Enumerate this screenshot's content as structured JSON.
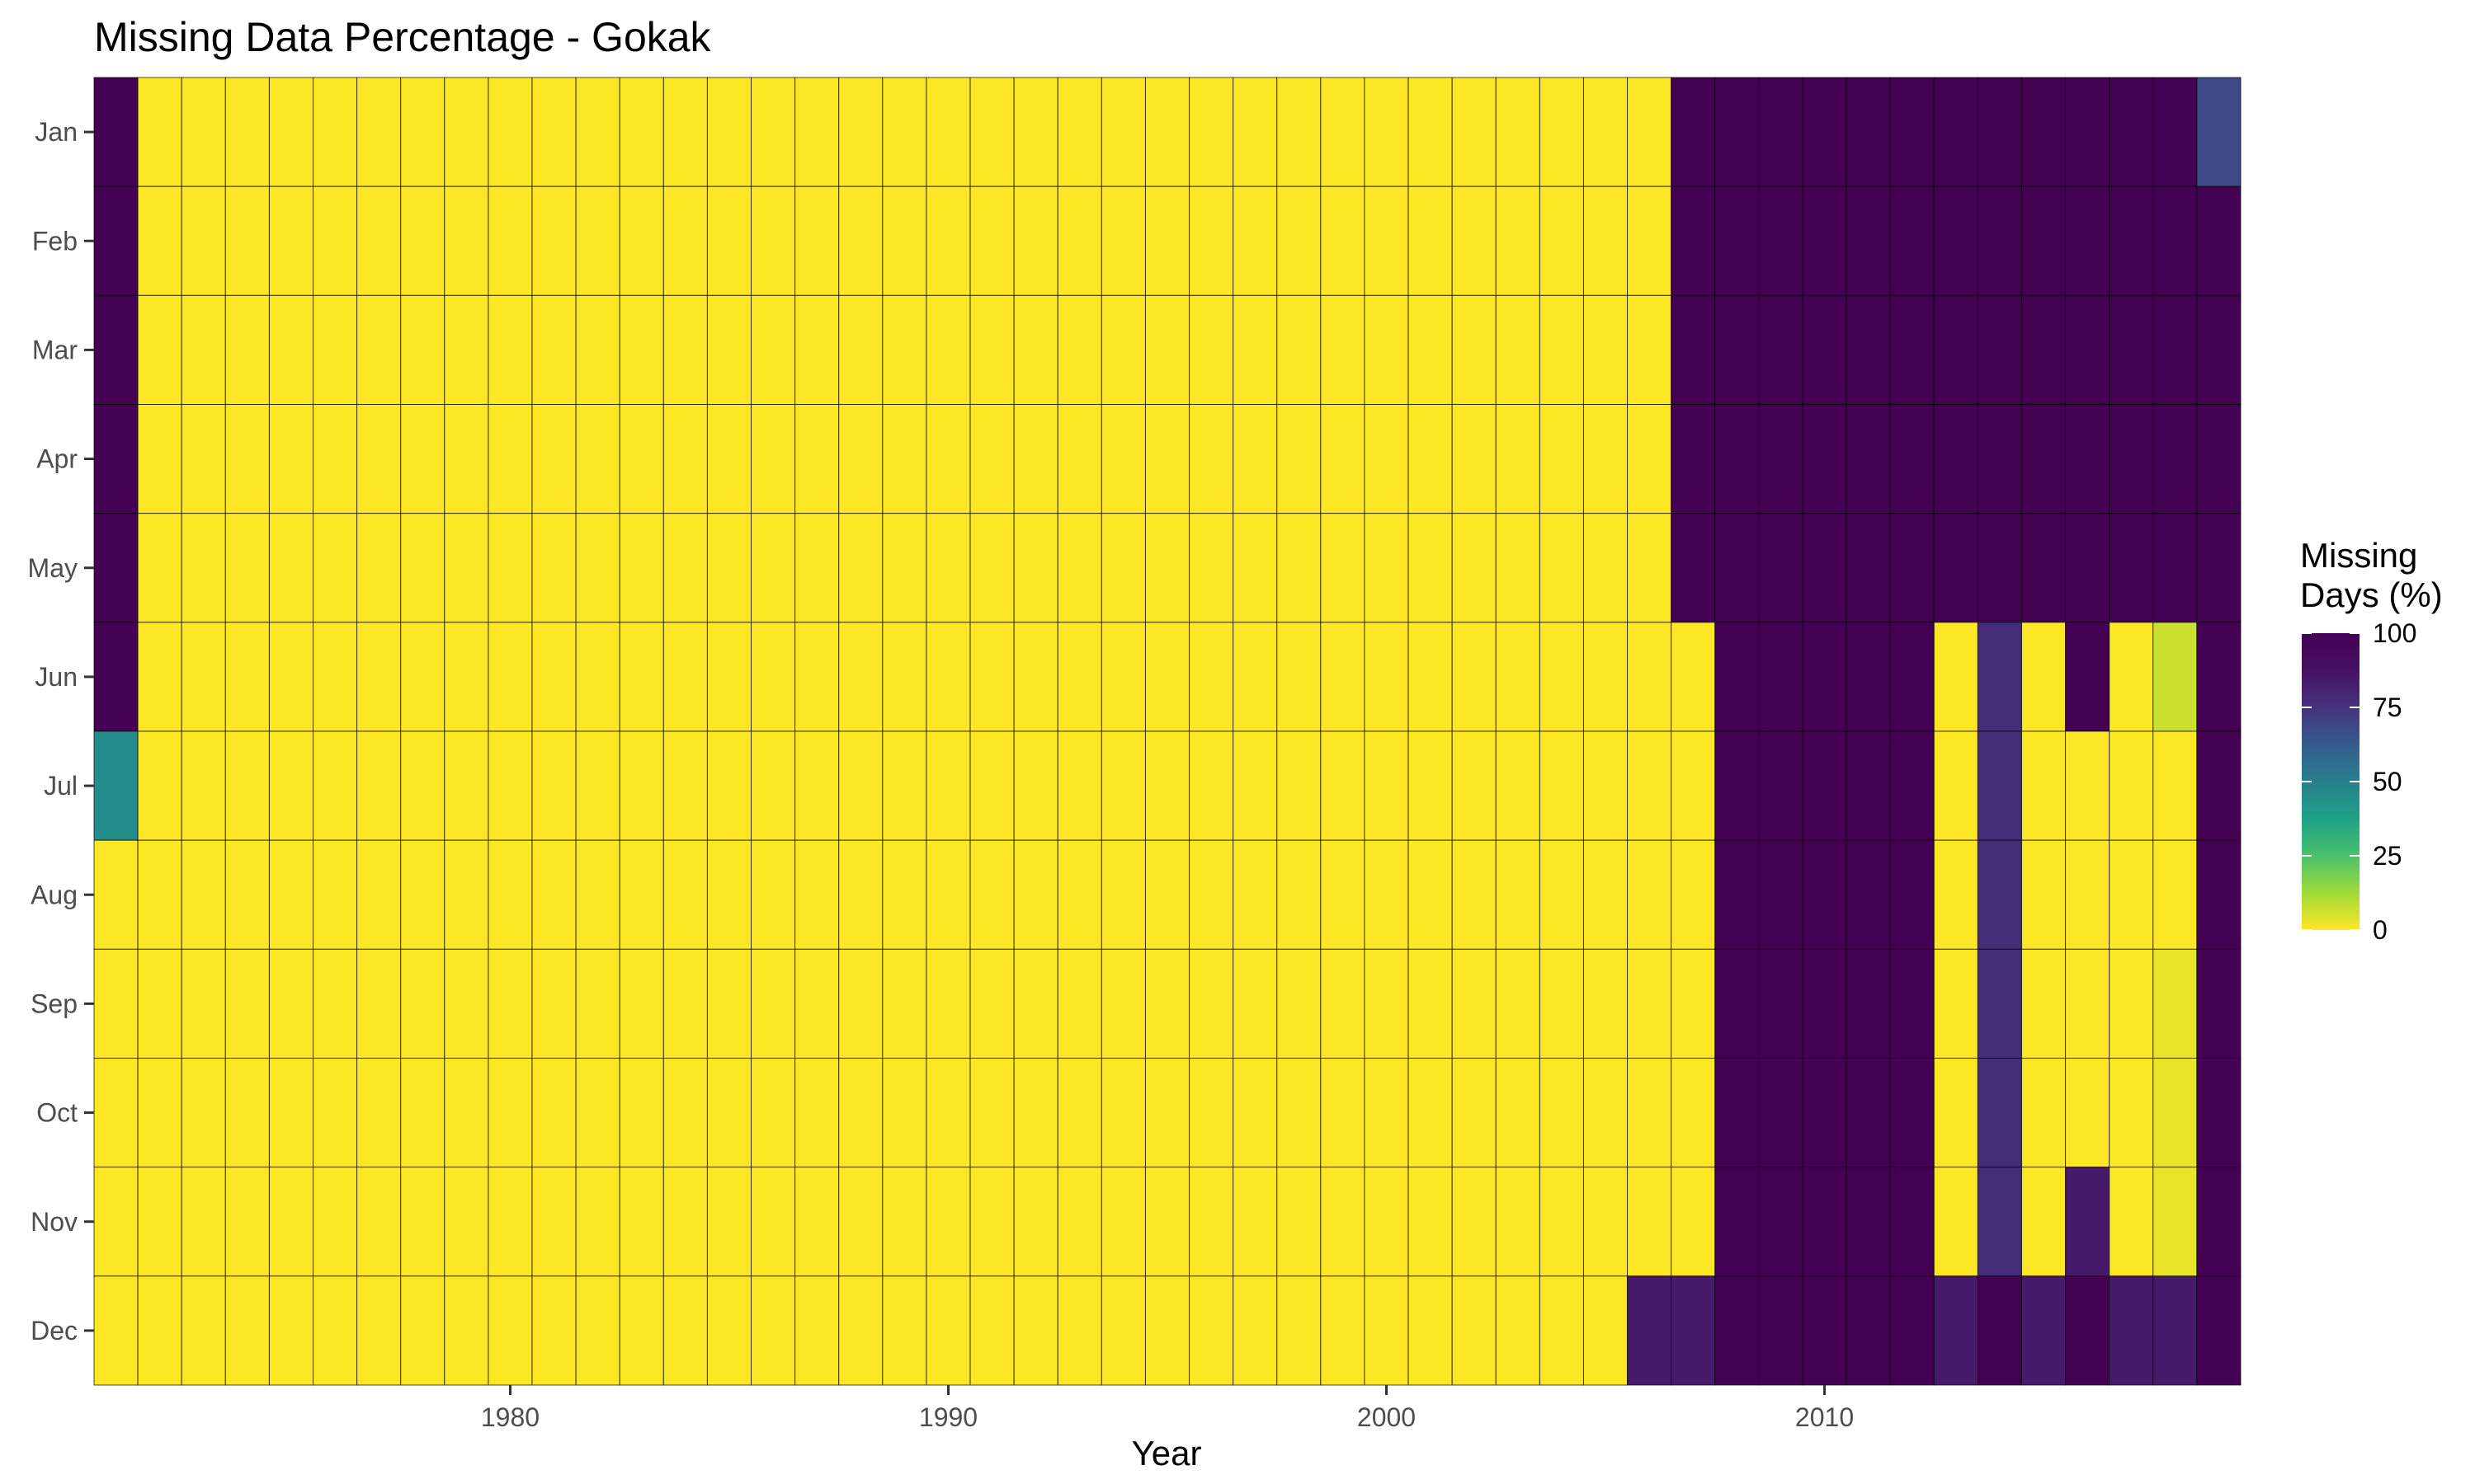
{
  "chart_data": {
    "type": "heatmap",
    "title": "Missing Data Percentage - Gokak",
    "xlabel": "Year",
    "ylabel": "",
    "x_tick_labels": [
      "1980",
      "1990",
      "2000",
      "2010"
    ],
    "years": [
      1971,
      1972,
      1973,
      1974,
      1975,
      1976,
      1977,
      1978,
      1979,
      1980,
      1981,
      1982,
      1983,
      1984,
      1985,
      1986,
      1987,
      1988,
      1989,
      1990,
      1991,
      1992,
      1993,
      1994,
      1995,
      1996,
      1997,
      1998,
      1999,
      2000,
      2001,
      2002,
      2003,
      2004,
      2005,
      2006,
      2007,
      2008,
      2009,
      2010,
      2011,
      2012,
      2013,
      2014,
      2015,
      2016,
      2017,
      2018,
      2019
    ],
    "months": [
      "Jan",
      "Feb",
      "Mar",
      "Apr",
      "May",
      "Jun",
      "Jul",
      "Aug",
      "Sep",
      "Oct",
      "Nov",
      "Dec"
    ],
    "legend": {
      "title_lines": [
        "Missing",
        "Days (%)"
      ],
      "ticks": [
        0,
        25,
        50,
        75,
        100
      ],
      "range": [
        0,
        100
      ],
      "colormap": "viridis-reversed",
      "position": "right"
    },
    "grid": false,
    "default_value": 0,
    "exceptions": [
      {
        "year": 1971,
        "months": [
          "Jan",
          "Feb",
          "Mar",
          "Apr",
          "May",
          "Jun"
        ],
        "value": 100
      },
      {
        "year": 1971,
        "months": [
          "Jul"
        ],
        "value": 45
      },
      {
        "year": 2006,
        "months": [
          "Dec"
        ],
        "value": 84
      },
      {
        "year": 2007,
        "months": [
          "Dec"
        ],
        "value": 84
      },
      {
        "year": 2007,
        "months": [
          "Jan",
          "Feb",
          "Mar",
          "Apr",
          "May"
        ],
        "value": 100
      },
      {
        "year": 2008,
        "months": [
          "Jan",
          "Feb",
          "Mar",
          "Apr",
          "May",
          "Jun",
          "Jul",
          "Aug",
          "Sep",
          "Oct",
          "Nov",
          "Dec"
        ],
        "value": 100
      },
      {
        "year": 2009,
        "months": [
          "Jan",
          "Feb",
          "Mar",
          "Apr",
          "May",
          "Jun",
          "Jul",
          "Aug",
          "Sep",
          "Oct",
          "Nov",
          "Dec"
        ],
        "value": 100
      },
      {
        "year": 2010,
        "months": [
          "Jan",
          "Feb",
          "Mar",
          "Apr",
          "May",
          "Jun",
          "Jul",
          "Aug",
          "Sep",
          "Oct",
          "Nov",
          "Dec"
        ],
        "value": 100
      },
      {
        "year": 2011,
        "months": [
          "Jan",
          "Feb",
          "Mar",
          "Apr",
          "May",
          "Jun",
          "Jul",
          "Aug",
          "Sep",
          "Oct",
          "Nov",
          "Dec"
        ],
        "value": 100
      },
      {
        "year": 2012,
        "months": [
          "Jan",
          "Feb",
          "Mar",
          "Apr",
          "May",
          "Jun",
          "Jul",
          "Aug",
          "Sep",
          "Oct",
          "Nov",
          "Dec"
        ],
        "value": 100
      },
      {
        "year": 2013,
        "months": [
          "Jan",
          "Feb",
          "Mar",
          "Apr",
          "May"
        ],
        "value": 100
      },
      {
        "year": 2013,
        "months": [
          "Dec"
        ],
        "value": 84
      },
      {
        "year": 2014,
        "months": [
          "Jan",
          "Feb",
          "Mar",
          "Apr",
          "May"
        ],
        "value": 100
      },
      {
        "year": 2014,
        "months": [
          "Jun",
          "Jul",
          "Aug",
          "Sep",
          "Oct",
          "Nov"
        ],
        "value": 77
      },
      {
        "year": 2014,
        "months": [
          "Dec"
        ],
        "value": 100
      },
      {
        "year": 2015,
        "months": [
          "Jan",
          "Feb",
          "Mar",
          "Apr",
          "May"
        ],
        "value": 100
      },
      {
        "year": 2015,
        "months": [
          "Dec"
        ],
        "value": 84
      },
      {
        "year": 2016,
        "months": [
          "Jan",
          "Feb",
          "Mar",
          "Apr",
          "May",
          "Jun"
        ],
        "value": 100
      },
      {
        "year": 2016,
        "months": [
          "Nov"
        ],
        "value": 84
      },
      {
        "year": 2016,
        "months": [
          "Dec"
        ],
        "value": 100
      },
      {
        "year": 2017,
        "months": [
          "Jan",
          "Feb",
          "Mar",
          "Apr",
          "May"
        ],
        "value": 100
      },
      {
        "year": 2017,
        "months": [
          "Dec"
        ],
        "value": 84
      },
      {
        "year": 2018,
        "months": [
          "Jan",
          "Feb",
          "Mar",
          "Apr",
          "May"
        ],
        "value": 100
      },
      {
        "year": 2018,
        "months": [
          "Jun"
        ],
        "value": 7
      },
      {
        "year": 2018,
        "months": [
          "Sep",
          "Oct",
          "Nov"
        ],
        "value": 3
      },
      {
        "year": 2018,
        "months": [
          "Dec"
        ],
        "value": 84
      },
      {
        "year": 2019,
        "months": [
          "Jan"
        ],
        "value": 68
      },
      {
        "year": 2019,
        "months": [
          "Feb",
          "Mar",
          "Apr",
          "May",
          "Jun",
          "Jul",
          "Aug",
          "Sep",
          "Oct",
          "Nov",
          "Dec"
        ],
        "value": 100
      }
    ]
  }
}
